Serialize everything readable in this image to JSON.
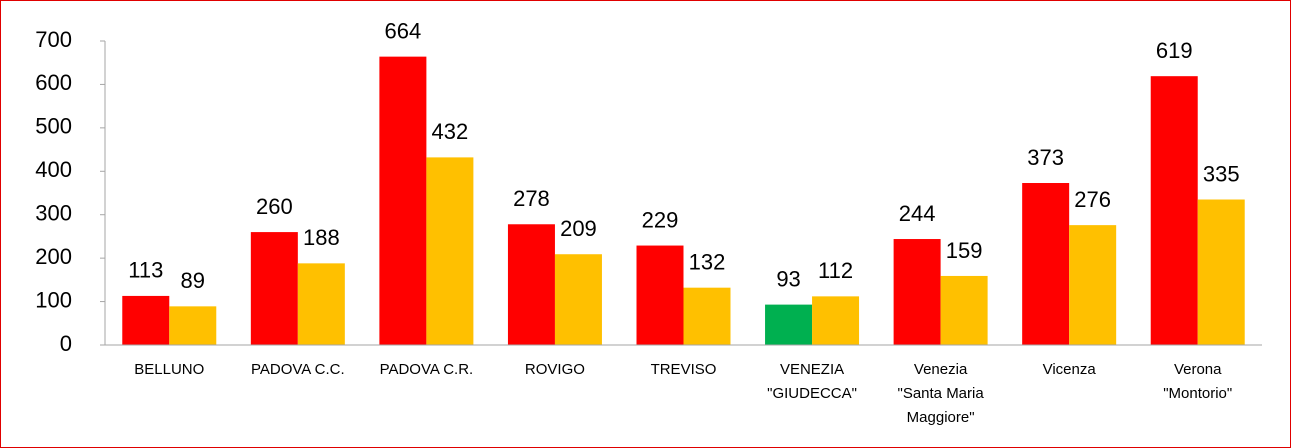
{
  "chart_data": {
    "type": "bar",
    "categories": [
      "BELLUNO",
      "PADOVA C.C.",
      "PADOVA C.R.",
      "ROVIGO",
      "TREVISO",
      "VENEZIA\n\"GIUDECCA\"",
      "Venezia\n\"Santa Maria\nMaggiore\"",
      "Vicenza",
      "Verona\n\"Montorio\""
    ],
    "series": [
      {
        "color": "#ff0000",
        "colors": [
          "#ff0000",
          "#ff0000",
          "#ff0000",
          "#ff0000",
          "#ff0000",
          "#00b050",
          "#ff0000",
          "#ff0000",
          "#ff0000"
        ],
        "values": [
          113,
          260,
          664,
          278,
          229,
          93,
          244,
          373,
          619
        ]
      },
      {
        "color": "#ffc000",
        "values": [
          89,
          188,
          432,
          209,
          132,
          112,
          159,
          276,
          335
        ]
      }
    ],
    "ylim": [
      0,
      700
    ],
    "yticks": [
      0,
      100,
      200,
      300,
      400,
      500,
      600,
      700
    ],
    "grid": false
  }
}
